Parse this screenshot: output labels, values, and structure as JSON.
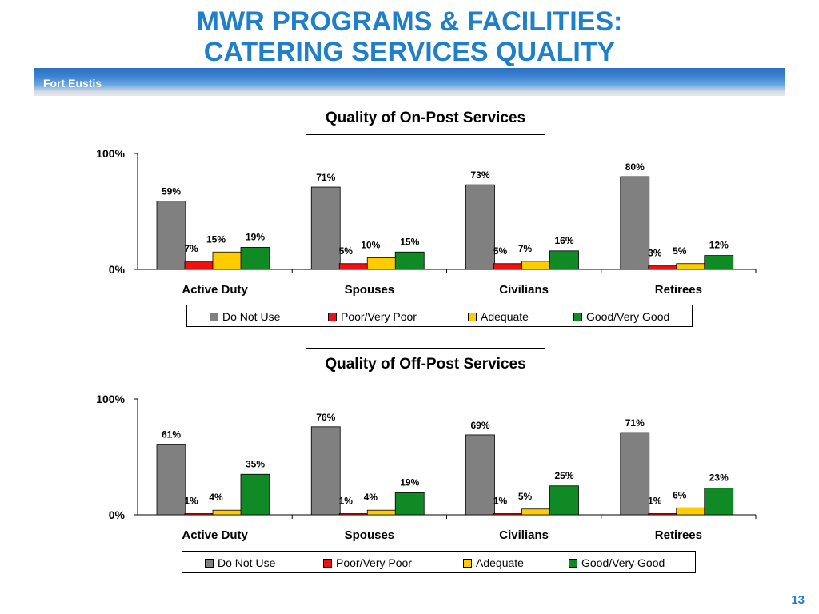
{
  "slide": {
    "title_line1": "MWR PROGRAMS & FACILITIES:",
    "title_line2": "CATERING SERVICES QUALITY",
    "banner_label": "Fort Eustis",
    "page_number": "13"
  },
  "colors": {
    "title": "#1f7fc9",
    "Do Not Use": "#808080",
    "Poor/Very Poor": "#ee1111",
    "Adequate": "#ffcc00",
    "Good/Very Good": "#108a24"
  },
  "chart_data": [
    {
      "type": "bar",
      "title": "Quality of On-Post Services",
      "categories": [
        "Active Duty",
        "Spouses",
        "Civilians",
        "Retirees"
      ],
      "y_ticks": [
        "100%",
        "0%"
      ],
      "ylim": [
        0,
        100
      ],
      "grid": false,
      "legend_position": "bottom",
      "series": [
        {
          "name": "Do Not Use",
          "values": [
            59,
            71,
            73,
            80
          ],
          "labels": [
            "59%",
            "71%",
            "73%",
            "80%"
          ]
        },
        {
          "name": "Poor/Very Poor",
          "values": [
            7,
            5,
            5,
            3
          ],
          "labels": [
            "7%",
            "5%",
            "5%",
            "3%"
          ]
        },
        {
          "name": "Adequate",
          "values": [
            15,
            10,
            7,
            5
          ],
          "labels": [
            "15%",
            "10%",
            "7%",
            "5%"
          ]
        },
        {
          "name": "Good/Very Good",
          "values": [
            19,
            15,
            16,
            12
          ],
          "labels": [
            "19%",
            "15%",
            "16%",
            "12%"
          ]
        }
      ]
    },
    {
      "type": "bar",
      "title": "Quality of Off-Post Services",
      "categories": [
        "Active Duty",
        "Spouses",
        "Civilians",
        "Retirees"
      ],
      "y_ticks": [
        "100%",
        "0%"
      ],
      "ylim": [
        0,
        100
      ],
      "grid": false,
      "legend_position": "bottom",
      "series": [
        {
          "name": "Do Not Use",
          "values": [
            61,
            76,
            69,
            71
          ],
          "labels": [
            "61%",
            "76%",
            "69%",
            "71%"
          ]
        },
        {
          "name": "Poor/Very Poor",
          "values": [
            1,
            1,
            1,
            1
          ],
          "labels": [
            "1%",
            "1%",
            "1%",
            "1%"
          ]
        },
        {
          "name": "Adequate",
          "values": [
            4,
            4,
            5,
            6
          ],
          "labels": [
            "4%",
            "4%",
            "5%",
            "6%"
          ]
        },
        {
          "name": "Good/Very Good",
          "values": [
            35,
            19,
            25,
            23
          ],
          "labels": [
            "35%",
            "19%",
            "25%",
            "23%"
          ]
        }
      ]
    }
  ]
}
